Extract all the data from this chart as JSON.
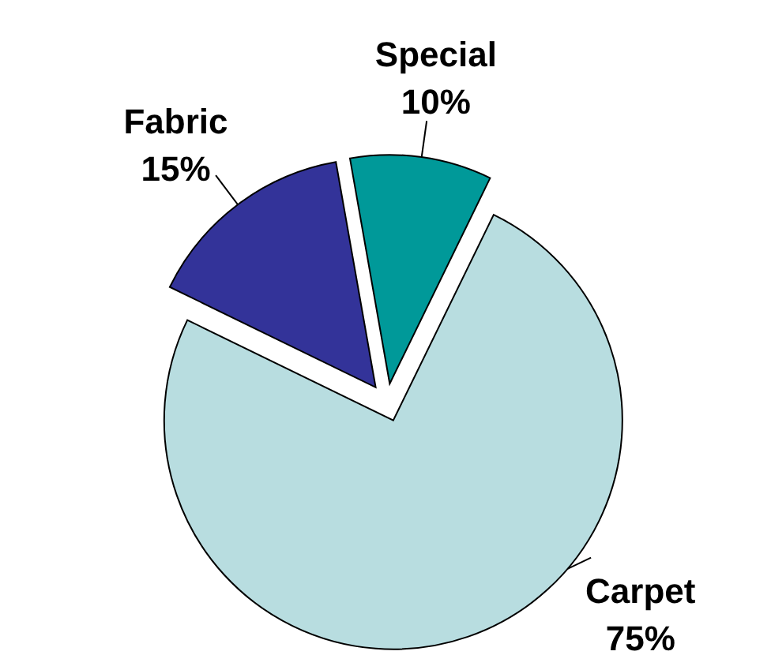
{
  "chart_data": {
    "type": "pie",
    "categories": [
      "Special",
      "Carpet",
      "Fabric"
    ],
    "values": [
      10,
      75,
      15
    ],
    "value_labels": [
      "10%",
      "75%",
      "15%"
    ],
    "colors": [
      "#009999",
      "#b8dde0",
      "#333399"
    ]
  }
}
